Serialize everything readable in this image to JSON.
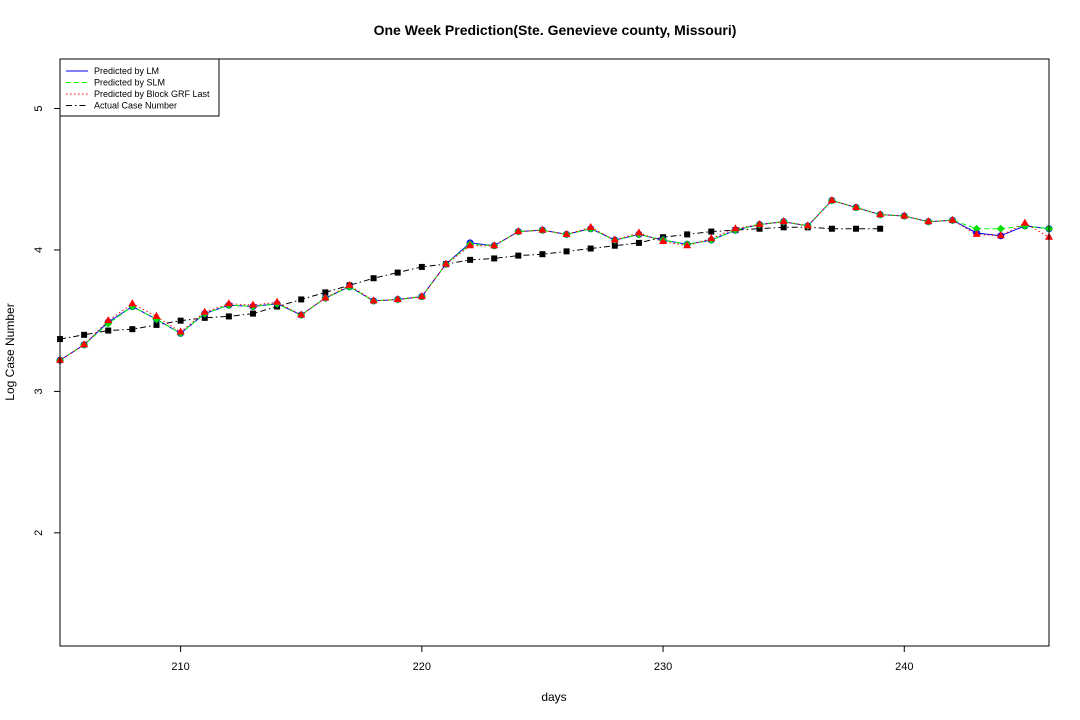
{
  "chart_data": {
    "type": "line",
    "title": "One Week Prediction(Ste. Genevieve county, Missouri)",
    "xlabel": "days",
    "ylabel": "Log Case Number",
    "xlim": [
      205,
      246
    ],
    "ylim": [
      1.2,
      5.35
    ],
    "xticks": [
      "210",
      "220",
      "230",
      "240"
    ],
    "yticks": [
      "2",
      "3",
      "4",
      "5"
    ],
    "legend_position": "top-left",
    "grid": false,
    "x": [
      205,
      206,
      207,
      208,
      209,
      210,
      211,
      212,
      213,
      214,
      215,
      216,
      217,
      218,
      219,
      220,
      221,
      222,
      223,
      224,
      225,
      226,
      227,
      228,
      229,
      230,
      231,
      232,
      233,
      234,
      235,
      236,
      237,
      238,
      239,
      240,
      241,
      242,
      243,
      244,
      245,
      246
    ],
    "series": [
      {
        "name": "Predicted by LM",
        "color": "#0000ff",
        "line_style": "solid",
        "marker": "circle",
        "marker_color": "#0000ff",
        "values": [
          3.22,
          3.33,
          3.49,
          3.6,
          3.51,
          3.41,
          3.55,
          3.61,
          3.6,
          3.62,
          3.54,
          3.66,
          3.74,
          3.64,
          3.65,
          3.67,
          3.9,
          4.05,
          4.03,
          4.13,
          4.14,
          4.11,
          4.15,
          4.07,
          4.11,
          4.07,
          4.04,
          4.07,
          4.14,
          4.18,
          4.2,
          4.17,
          4.35,
          4.3,
          4.25,
          4.24,
          4.2,
          4.21,
          4.12,
          4.1,
          4.17,
          4.15
        ]
      },
      {
        "name": "Predicted by SLM",
        "color": "#00ff00",
        "line_style": "dashed",
        "marker": "diamond",
        "marker_color": "#00dd00",
        "values": [
          3.22,
          3.33,
          3.48,
          3.6,
          3.51,
          3.41,
          3.55,
          3.61,
          3.6,
          3.62,
          3.54,
          3.66,
          3.74,
          3.64,
          3.65,
          3.67,
          3.9,
          4.04,
          4.03,
          4.13,
          4.14,
          4.11,
          4.15,
          4.07,
          4.11,
          4.07,
          4.04,
          4.07,
          4.14,
          4.18,
          4.2,
          4.17,
          4.35,
          4.3,
          4.25,
          4.24,
          4.2,
          4.21,
          4.15,
          4.15,
          4.17,
          4.15
        ]
      },
      {
        "name": "Predicted by Block GRF Last",
        "color": "#ff0000",
        "line_style": "dotted",
        "marker": "triangle",
        "marker_color": "#ff0000",
        "values": [
          3.22,
          3.33,
          3.5,
          3.62,
          3.53,
          3.42,
          3.56,
          3.62,
          3.61,
          3.63,
          3.54,
          3.66,
          3.75,
          3.64,
          3.65,
          3.67,
          3.9,
          4.03,
          4.03,
          4.13,
          4.14,
          4.11,
          4.16,
          4.07,
          4.12,
          4.06,
          4.03,
          4.08,
          4.15,
          4.18,
          4.2,
          4.17,
          4.35,
          4.3,
          4.25,
          4.24,
          4.2,
          4.21,
          4.11,
          4.1,
          4.19,
          4.09
        ]
      },
      {
        "name": "Actual Case Number",
        "color": "#000000",
        "line_style": "dashdot",
        "marker": "square",
        "marker_color": "#000000",
        "values": [
          3.37,
          3.4,
          3.43,
          3.44,
          3.47,
          3.5,
          3.52,
          3.53,
          3.55,
          3.6,
          3.65,
          3.7,
          3.75,
          3.8,
          3.84,
          3.88,
          3.9,
          3.93,
          3.94,
          3.96,
          3.97,
          3.99,
          4.01,
          4.03,
          4.05,
          4.09,
          4.11,
          4.13,
          4.14,
          4.15,
          4.16,
          4.16,
          4.15,
          4.15,
          4.15,
          null,
          null,
          null,
          null,
          null,
          null,
          null
        ]
      }
    ]
  }
}
